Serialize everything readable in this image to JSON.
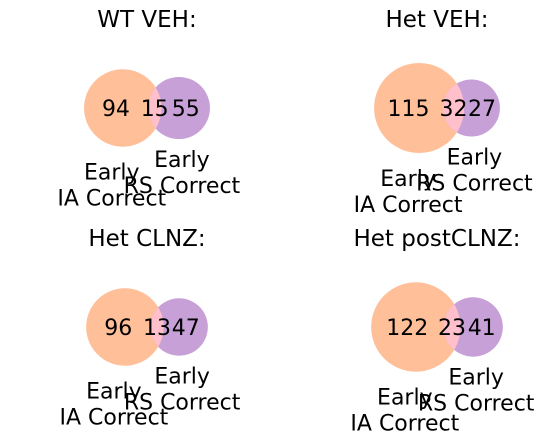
{
  "colors": {
    "left_only": "#FFBF99",
    "right_only": "#C7A0D8",
    "overlap": "#FFBFCB",
    "text": "#000000"
  },
  "chart_data": [
    {
      "type": "venn",
      "title": "WT VEH:",
      "set_labels": [
        "Early\nIA Correct",
        "Early\nRS Correct"
      ],
      "left_only": 94,
      "overlap": 15,
      "right_only": 55
    },
    {
      "type": "venn",
      "title": "Het VEH:",
      "set_labels": [
        "Early\nIA Correct",
        "Early\nRS Correct"
      ],
      "left_only": 115,
      "overlap": 32,
      "right_only": 27
    },
    {
      "type": "venn",
      "title": "Het CLNZ:",
      "set_labels": [
        "Early\nIA Correct",
        "Early\nRS Correct"
      ],
      "left_only": 96,
      "overlap": 13,
      "right_only": 47
    },
    {
      "type": "venn",
      "title": "Het postCLNZ:",
      "set_labels": [
        "Early\nIA Correct",
        "Early\nRS Correct"
      ],
      "left_only": 122,
      "overlap": 23,
      "right_only": 41
    }
  ]
}
